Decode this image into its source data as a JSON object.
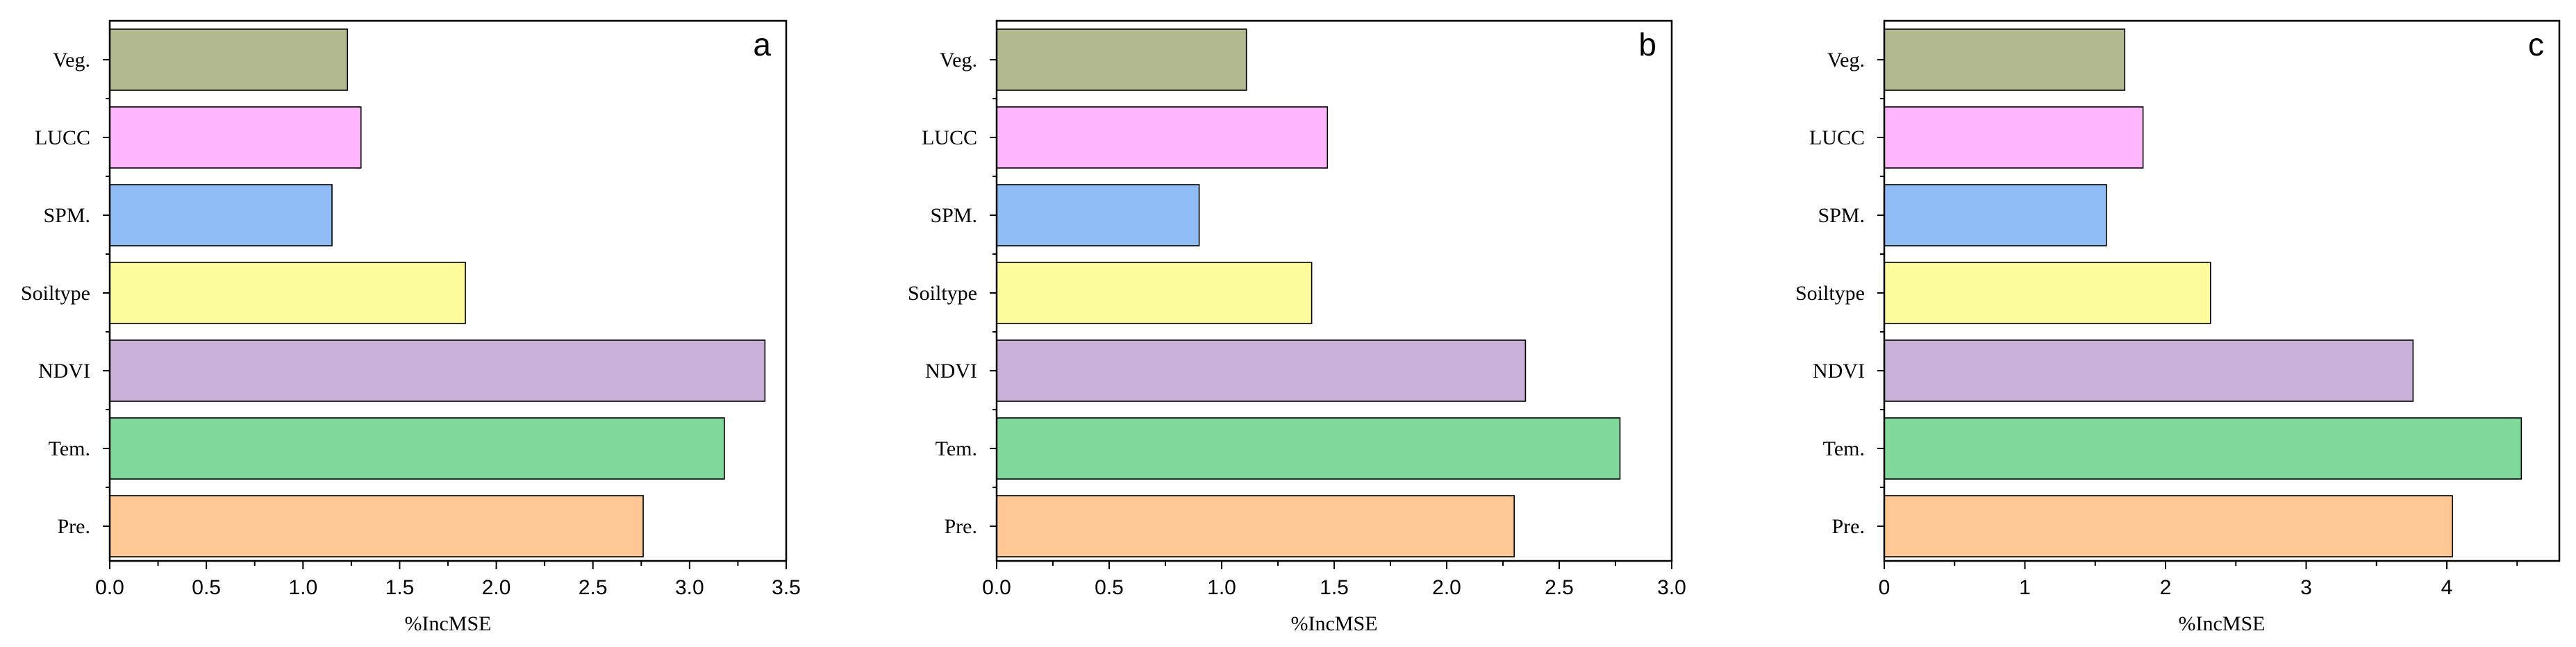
{
  "chart_data": [
    {
      "type": "bar",
      "orientation": "horizontal",
      "panel_label": "a",
      "categories": [
        "Veg.",
        "LUCC",
        "SPM.",
        "Soiltype",
        "NDVI",
        "Tem.",
        "Pre."
      ],
      "values": [
        1.23,
        1.3,
        1.15,
        1.84,
        3.39,
        3.18,
        2.76
      ],
      "colors": [
        "#b2b98f",
        "#ffb6fc",
        "#8fbcf4",
        "#fdfc9d",
        "#c8b0d8",
        "#80d99b",
        "#ffc793"
      ],
      "xlabel": "%IncMSE",
      "xlim": [
        0,
        3.5
      ],
      "xticks": [
        "0.0",
        "0.5",
        "1.0",
        "1.5",
        "2.0",
        "2.5",
        "3.0",
        "3.5"
      ],
      "grid": false
    },
    {
      "type": "bar",
      "orientation": "horizontal",
      "panel_label": "b",
      "categories": [
        "Veg.",
        "LUCC",
        "SPM.",
        "Soiltype",
        "NDVI",
        "Tem.",
        "Pre."
      ],
      "values": [
        1.11,
        1.47,
        0.9,
        1.4,
        2.35,
        2.77,
        2.3
      ],
      "colors": [
        "#b2b98f",
        "#ffb6fc",
        "#8fbcf4",
        "#fdfc9d",
        "#c8b0d8",
        "#80d99b",
        "#ffc793"
      ],
      "xlabel": "%IncMSE",
      "xlim": [
        0,
        3.0
      ],
      "xticks": [
        "0.0",
        "0.5",
        "1.0",
        "1.5",
        "2.0",
        "2.5",
        "3.0"
      ],
      "grid": false
    },
    {
      "type": "bar",
      "orientation": "horizontal",
      "panel_label": "c",
      "categories": [
        "Veg.",
        "LUCC",
        "SPM.",
        "Soiltype",
        "NDVI",
        "Tem.",
        "Pre."
      ],
      "values": [
        1.71,
        1.84,
        1.58,
        2.32,
        3.76,
        4.53,
        4.04
      ],
      "colors": [
        "#b2b98f",
        "#ffb6fc",
        "#8fbcf4",
        "#fdfc9d",
        "#c8b0d8",
        "#80d99b",
        "#ffc793"
      ],
      "xlabel": "%IncMSE",
      "xlim": [
        0,
        4.8
      ],
      "xticks": [
        "0",
        "1",
        "2",
        "3",
        "4"
      ],
      "xtick_values": [
        0,
        1,
        2,
        3,
        4
      ],
      "grid": false
    }
  ]
}
